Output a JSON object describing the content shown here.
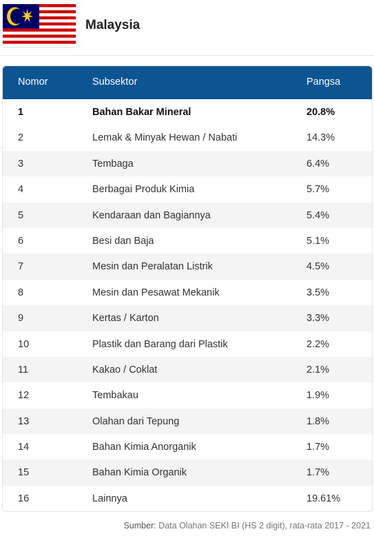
{
  "header": {
    "country": "Malaysia"
  },
  "table": {
    "columns": {
      "nomor": "Nomor",
      "subsektor": "Subsektor",
      "pangsa": "Pangsa"
    },
    "rows": [
      {
        "nomor": "1",
        "subsektor": "Bahan Bakar Mineral",
        "pangsa": "20.8%"
      },
      {
        "nomor": "2",
        "subsektor": "Lemak & Minyak Hewan / Nabati",
        "pangsa": "14.3%"
      },
      {
        "nomor": "3",
        "subsektor": "Tembaga",
        "pangsa": "6.4%"
      },
      {
        "nomor": "4",
        "subsektor": "Berbagai Produk Kimia",
        "pangsa": "5.7%"
      },
      {
        "nomor": "5",
        "subsektor": "Kendaraan dan Bagiannya",
        "pangsa": "5.4%"
      },
      {
        "nomor": "6",
        "subsektor": "Besi dan Baja",
        "pangsa": "5.1%"
      },
      {
        "nomor": "7",
        "subsektor": "Mesin dan Peralatan Listrik",
        "pangsa": "4.5%"
      },
      {
        "nomor": "8",
        "subsektor": "Mesin dan Pesawat Mekanik",
        "pangsa": "3.5%"
      },
      {
        "nomor": "9",
        "subsektor": "Kertas / Karton",
        "pangsa": "3.3%"
      },
      {
        "nomor": "10",
        "subsektor": "Plastik dan Barang dari Plastik",
        "pangsa": "2.2%"
      },
      {
        "nomor": "11",
        "subsektor": "Kakao / Coklat",
        "pangsa": "2.1%"
      },
      {
        "nomor": "12",
        "subsektor": "Tembakau",
        "pangsa": "1.9%"
      },
      {
        "nomor": "13",
        "subsektor": "Olahan dari Tepung",
        "pangsa": "1.8%"
      },
      {
        "nomor": "14",
        "subsektor": "Bahan Kimia Anorganik",
        "pangsa": "1.7%"
      },
      {
        "nomor": "15",
        "subsektor": "Bahan Kimia Organik",
        "pangsa": "1.7%"
      },
      {
        "nomor": "16",
        "subsektor": "Lainnya",
        "pangsa": "19.61%"
      }
    ]
  },
  "source": {
    "label": "Sumber:",
    "text": "Data Olahan SEKI BI (HS 2 digit), rata-rata 2017 - 2021"
  },
  "colors": {
    "header_bg": "#0d5493",
    "flag_red": "#cc0001",
    "flag_blue": "#010066",
    "flag_yellow": "#ffcc00"
  },
  "icons": {
    "flag": "malaysia-flag-icon"
  }
}
